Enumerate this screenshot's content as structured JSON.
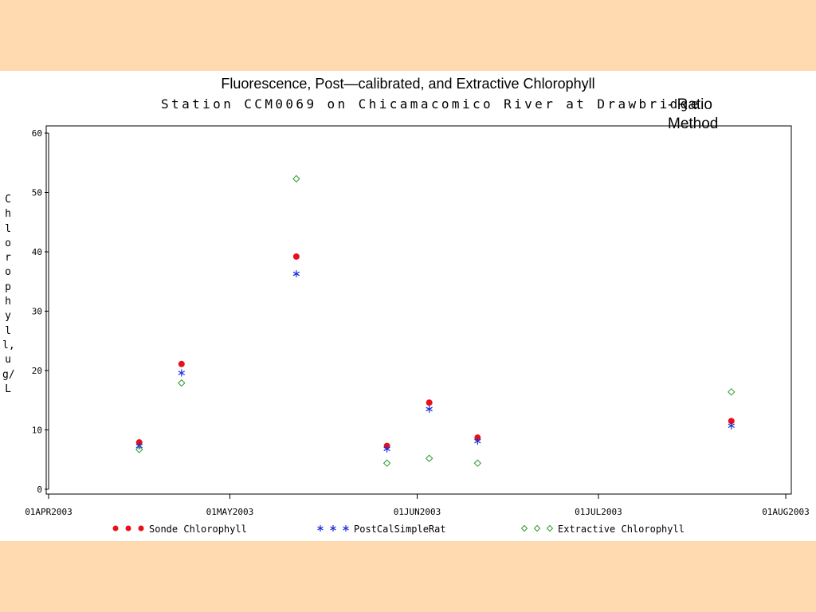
{
  "slide": {
    "title": "Fluorescence, Post—calibrated, and Extractive Chlorophyll",
    "subtitle": "Station CCM0069 on Chicamacomico River at Drawbridge",
    "overlay_note": "- Ratio\nMethod"
  },
  "chart_data": {
    "type": "scatter",
    "title": "Fluorescence, Post—calibrated, and Extractive Chlorophyll",
    "subtitle": "Station CCM0069 on Chicamacomico River at Drawbridge",
    "ylabel": "Chlorophyll, ug/L",
    "xlabel": "",
    "x_axis_kind": "date",
    "xlim": [
      "2003-04-01",
      "2003-08-01"
    ],
    "ylim": [
      0,
      60
    ],
    "yticks": [
      0,
      10,
      20,
      30,
      40,
      50,
      60
    ],
    "xticks": [
      {
        "date": "2003-04-01",
        "label": "01APR2003"
      },
      {
        "date": "2003-05-01",
        "label": "01MAY2003"
      },
      {
        "date": "2003-06-01",
        "label": "01JUN2003"
      },
      {
        "date": "2003-07-01",
        "label": "01JUL2003"
      },
      {
        "date": "2003-08-01",
        "label": "01AUG2003"
      }
    ],
    "grid": false,
    "legend_position": "bottom",
    "series": [
      {
        "name": "Sonde Chlorophyll",
        "marker": "dot",
        "color": "#E8101A",
        "points": [
          {
            "x": "2003-04-16",
            "y": 7.9
          },
          {
            "x": "2003-04-23",
            "y": 21.1
          },
          {
            "x": "2003-05-12",
            "y": 39.2
          },
          {
            "x": "2003-05-27",
            "y": 7.3
          },
          {
            "x": "2003-06-03",
            "y": 14.6
          },
          {
            "x": "2003-06-11",
            "y": 8.7
          },
          {
            "x": "2003-07-23",
            "y": 11.5
          }
        ]
      },
      {
        "name": "PostCalSimpleRat",
        "marker": "star",
        "color": "#1A2CE0",
        "points": [
          {
            "x": "2003-04-16",
            "y": 7.3
          },
          {
            "x": "2003-04-23",
            "y": 19.6
          },
          {
            "x": "2003-05-12",
            "y": 36.3
          },
          {
            "x": "2003-05-27",
            "y": 6.8
          },
          {
            "x": "2003-06-03",
            "y": 13.5
          },
          {
            "x": "2003-06-11",
            "y": 8.1
          },
          {
            "x": "2003-07-23",
            "y": 10.7
          }
        ]
      },
      {
        "name": "Extractive Chlorophyll",
        "marker": "diamond",
        "color": "#2E9A2E",
        "points": [
          {
            "x": "2003-04-16",
            "y": 6.7
          },
          {
            "x": "2003-04-23",
            "y": 17.9
          },
          {
            "x": "2003-05-12",
            "y": 52.3
          },
          {
            "x": "2003-05-27",
            "y": 4.4
          },
          {
            "x": "2003-06-03",
            "y": 5.2
          },
          {
            "x": "2003-06-11",
            "y": 4.4
          },
          {
            "x": "2003-07-23",
            "y": 16.4
          }
        ]
      }
    ]
  }
}
